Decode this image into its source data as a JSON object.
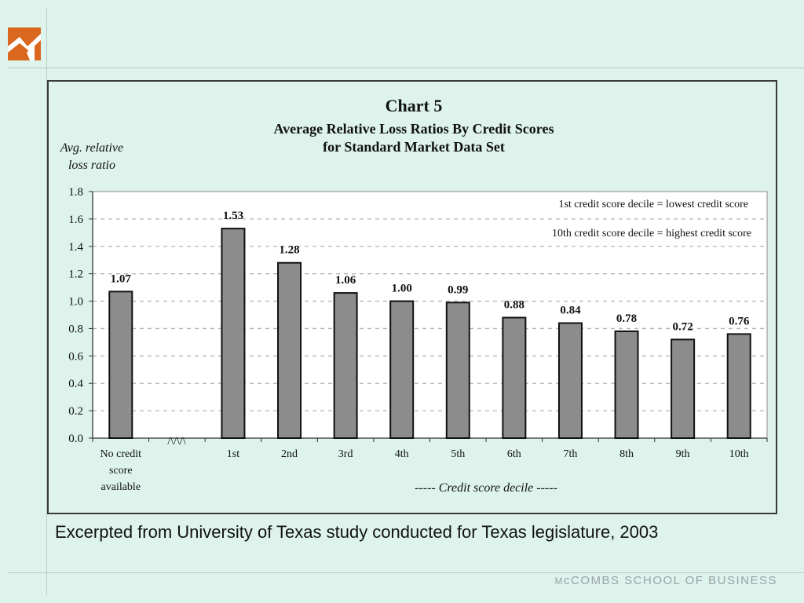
{
  "footer": {
    "brand": "McCOMBS SCHOOL OF BUSINESS"
  },
  "colors": {
    "background": "#ddf3ec",
    "bar": "#8c8c8c",
    "logo": "#d9671e"
  },
  "caption": "Excerpted from University of Texas study conducted for Texas legislature, 2003",
  "chart_data": {
    "type": "bar",
    "title": "Chart 5",
    "subtitle_lines": [
      "Average Relative Loss Ratios By Credit Scores",
      "for Standard Market Data Set"
    ],
    "ylabel_lines": [
      "Avg. relative",
      "loss ratio"
    ],
    "xlabel": "----- Credit score decile -----",
    "categories": [
      "No credit score available",
      "1st",
      "2nd",
      "3rd",
      "4th",
      "5th",
      "6th",
      "7th",
      "8th",
      "9th",
      "10th"
    ],
    "values": [
      1.07,
      1.53,
      1.28,
      1.06,
      1.0,
      0.99,
      0.88,
      0.84,
      0.78,
      0.72,
      0.76
    ],
    "value_labels": [
      "1.07",
      "1.53",
      "1.28",
      "1.06",
      "1.00",
      "0.99",
      "0.88",
      "0.84",
      "0.78",
      "0.72",
      "0.76"
    ],
    "ylim": [
      0,
      1.8
    ],
    "yticks": [
      "0.0",
      "0.2",
      "0.4",
      "0.6",
      "0.8",
      "1.0",
      "1.2",
      "1.4",
      "1.6",
      "1.8"
    ],
    "grid": true,
    "axis_break": "/\\/\\/\\",
    "notes": [
      "1st credit score decile = lowest credit score",
      "10th credit score decile = highest credit score"
    ]
  }
}
